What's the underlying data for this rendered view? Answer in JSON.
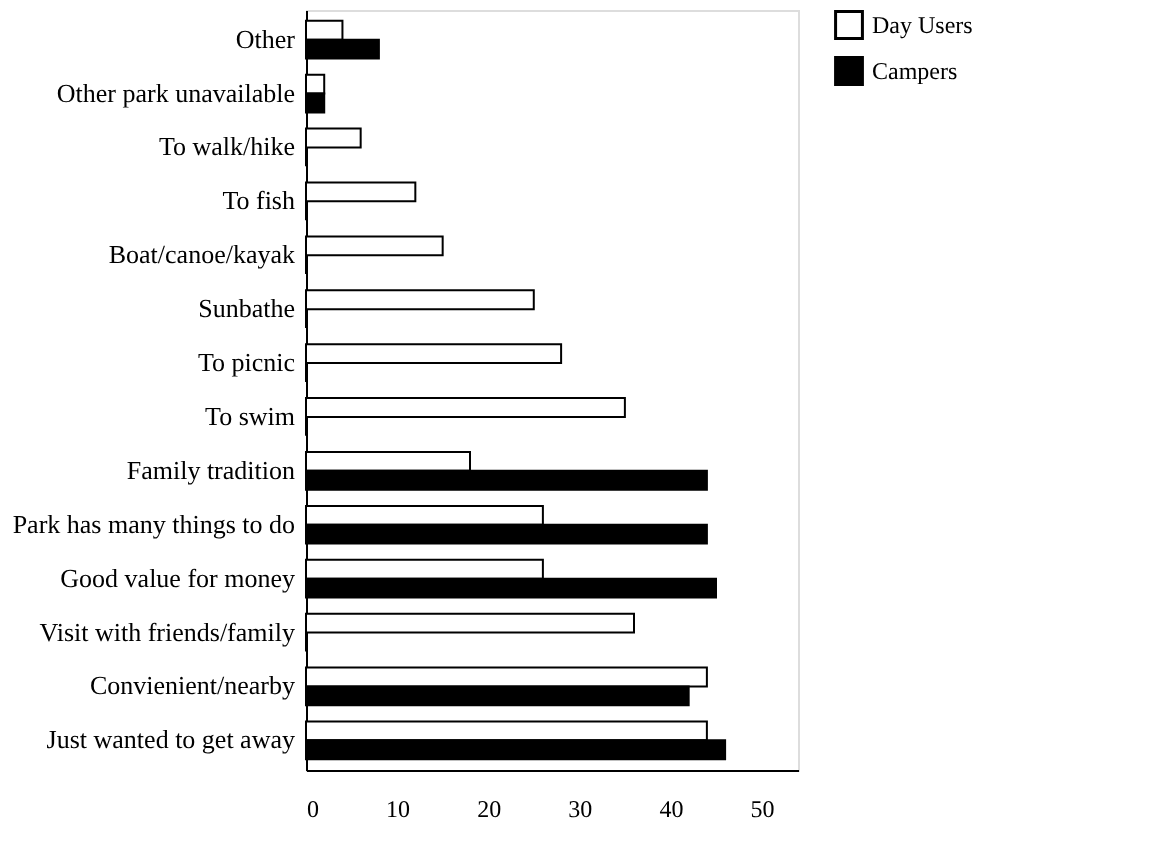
{
  "chart_data": {
    "type": "bar",
    "orientation": "horizontal",
    "categories": [
      "Other",
      "Other park unavailable",
      "To walk/hike",
      "To fish",
      "Boat/canoe/kayak",
      "Sunbathe",
      "To picnic",
      "To swim",
      "Family tradition",
      "Park has many things to do",
      "Good value for money",
      "Visit with friends/family",
      "Convienient/nearby",
      "Just wanted to get away"
    ],
    "series": [
      {
        "name": "Day Users",
        "color": "#ffffff",
        "values": [
          4,
          2,
          6,
          12,
          15,
          25,
          28,
          35,
          18,
          26,
          26,
          36,
          44,
          44
        ]
      },
      {
        "name": "Campers",
        "color": "#000000",
        "values": [
          8,
          2,
          0,
          0,
          0,
          0,
          0,
          0,
          44,
          44,
          45,
          0,
          42,
          46
        ]
      }
    ],
    "xlim": [
      0,
      54
    ],
    "xticks": [
      0,
      10,
      20,
      30,
      40,
      50
    ],
    "grid": false,
    "legend": "top right"
  }
}
